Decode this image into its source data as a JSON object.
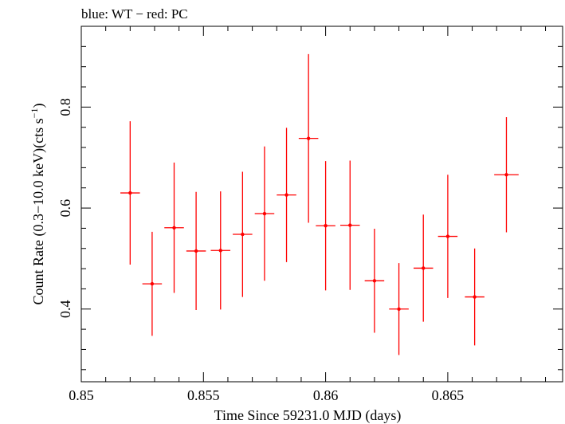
{
  "chart_data": {
    "type": "scatter",
    "title": "blue: WT − red: PC",
    "xlabel": "Time Since 59231.0 MJD (days)",
    "ylabel_main": "Count Rate (0.3−10.0 keV)(cts s",
    "ylabel_sup": "−1",
    "ylabel_close": ")",
    "xlim": [
      0.85,
      0.8697
    ],
    "ylim": [
      0.256,
      0.96
    ],
    "x_ticks": [
      0.85,
      0.855,
      0.86,
      0.865
    ],
    "x_tick_labels": [
      "0.85",
      "0.855",
      "0.86",
      "0.865"
    ],
    "y_ticks": [
      0.4,
      0.6,
      0.8
    ],
    "y_tick_labels": [
      "0.4",
      "0.6",
      "0.8"
    ],
    "grid": false,
    "legend": "none",
    "series": [
      {
        "color": "#ff0000",
        "points": [
          {
            "x": 0.852,
            "xerr": 0.0004,
            "y": 0.63,
            "yerr_low": 0.142,
            "yerr_high": 0.142
          },
          {
            "x": 0.8529,
            "xerr": 0.0004,
            "y": 0.45,
            "yerr_low": 0.103,
            "yerr_high": 0.103
          },
          {
            "x": 0.8538,
            "xerr": 0.0004,
            "y": 0.561,
            "yerr_low": 0.129,
            "yerr_high": 0.129
          },
          {
            "x": 0.8547,
            "xerr": 0.0004,
            "y": 0.515,
            "yerr_low": 0.117,
            "yerr_high": 0.117
          },
          {
            "x": 0.8557,
            "xerr": 0.0004,
            "y": 0.516,
            "yerr_low": 0.117,
            "yerr_high": 0.117
          },
          {
            "x": 0.8566,
            "xerr": 0.0004,
            "y": 0.548,
            "yerr_low": 0.124,
            "yerr_high": 0.124
          },
          {
            "x": 0.8575,
            "xerr": 0.0004,
            "y": 0.589,
            "yerr_low": 0.133,
            "yerr_high": 0.133
          },
          {
            "x": 0.8584,
            "xerr": 0.0004,
            "y": 0.626,
            "yerr_low": 0.133,
            "yerr_high": 0.133
          },
          {
            "x": 0.8593,
            "xerr": 0.0004,
            "y": 0.738,
            "yerr_low": 0.167,
            "yerr_high": 0.167
          },
          {
            "x": 0.86,
            "xerr": 0.0004,
            "y": 0.565,
            "yerr_low": 0.128,
            "yerr_high": 0.128
          },
          {
            "x": 0.861,
            "xerr": 0.0004,
            "y": 0.566,
            "yerr_low": 0.128,
            "yerr_high": 0.128
          },
          {
            "x": 0.862,
            "xerr": 0.0004,
            "y": 0.456,
            "yerr_low": 0.103,
            "yerr_high": 0.103
          },
          {
            "x": 0.863,
            "xerr": 0.0004,
            "y": 0.4,
            "yerr_low": 0.091,
            "yerr_high": 0.091
          },
          {
            "x": 0.864,
            "xerr": 0.0004,
            "y": 0.481,
            "yerr_low": 0.106,
            "yerr_high": 0.106
          },
          {
            "x": 0.865,
            "xerr": 0.0004,
            "y": 0.544,
            "yerr_low": 0.122,
            "yerr_high": 0.122
          },
          {
            "x": 0.8661,
            "xerr": 0.0004,
            "y": 0.424,
            "yerr_low": 0.096,
            "yerr_high": 0.096
          },
          {
            "x": 0.8674,
            "xerr": 0.0005,
            "y": 0.666,
            "yerr_low": 0.114,
            "yerr_high": 0.114
          }
        ]
      }
    ]
  }
}
